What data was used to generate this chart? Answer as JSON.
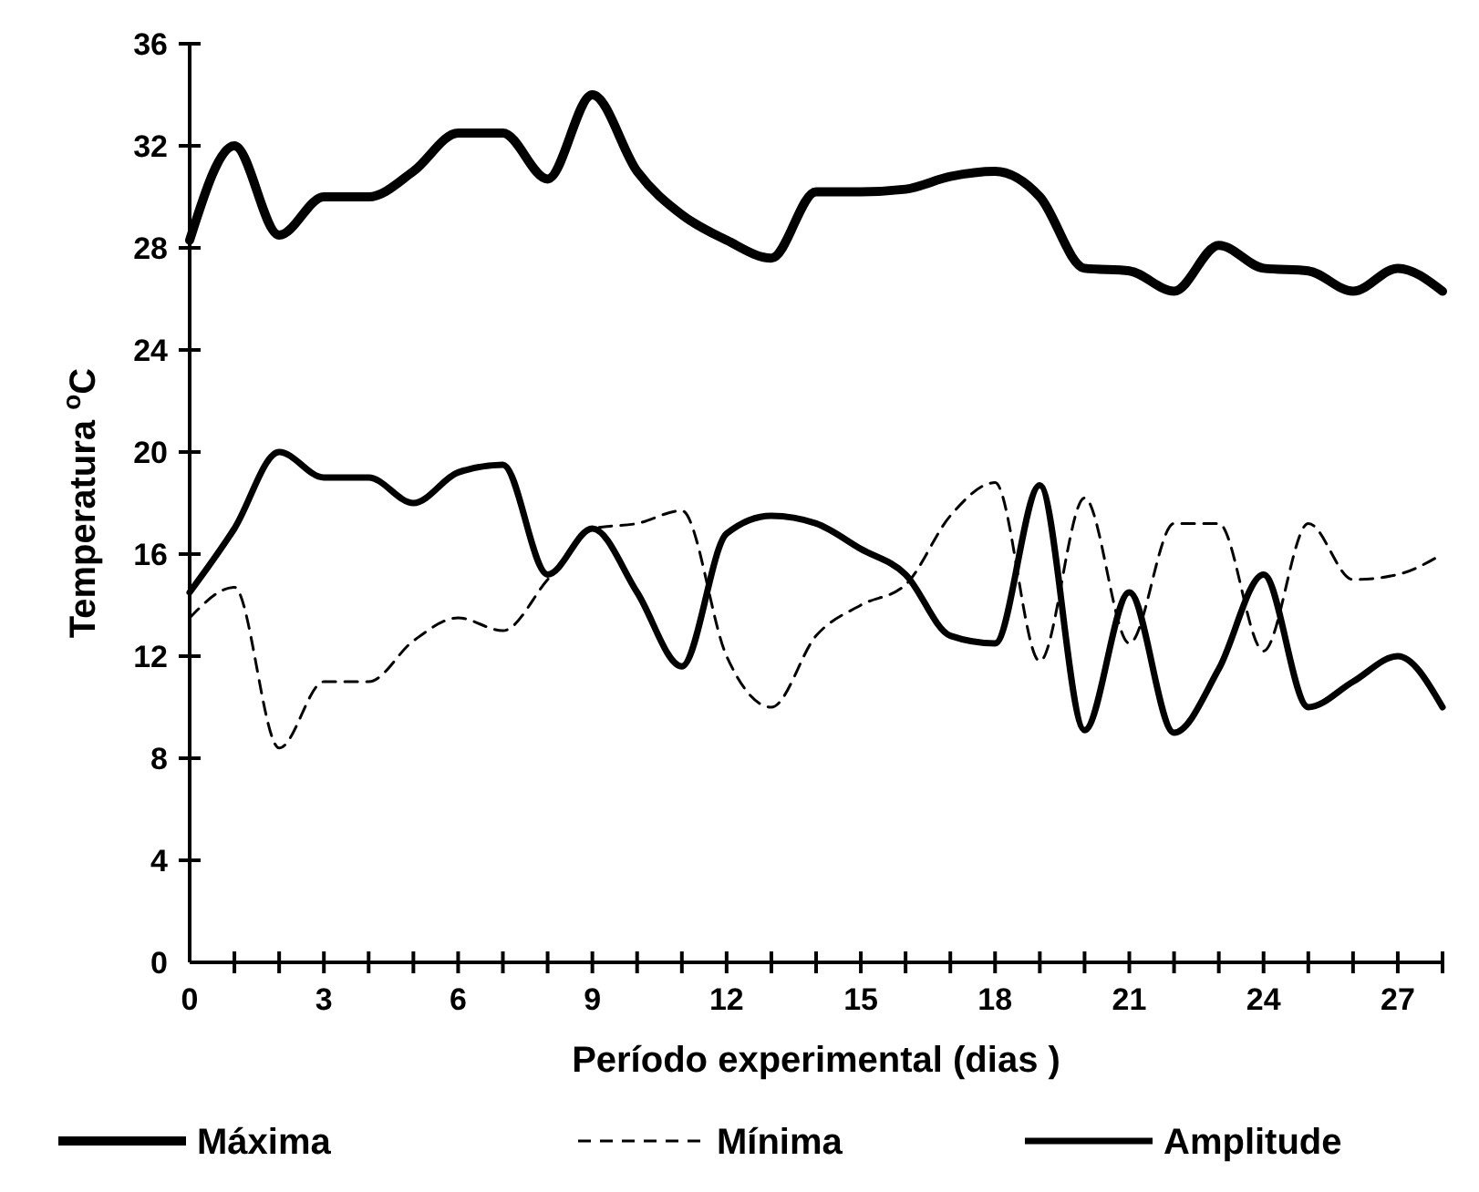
{
  "chart_data": {
    "type": "line",
    "xlabel": "Período experimental (dias )",
    "ylabel": "Temperatura $^{o}$C",
    "xlim": [
      0,
      28
    ],
    "ylim": [
      0,
      36
    ],
    "xticks": [
      0,
      {
        "value": 1,
        "label": null
      },
      {
        "value": 2,
        "label": null
      },
      3,
      {
        "value": 4,
        "label": null
      },
      {
        "value": 5,
        "label": null
      },
      6,
      {
        "value": 7,
        "label": null
      },
      {
        "value": 8,
        "label": null
      },
      9,
      {
        "value": 10,
        "label": null
      },
      {
        "value": 11,
        "label": null
      },
      12,
      {
        "value": 13,
        "label": null
      },
      {
        "value": 14,
        "label": null
      },
      15,
      {
        "value": 16,
        "label": null
      },
      {
        "value": 17,
        "label": null
      },
      18,
      {
        "value": 19,
        "label": null
      },
      {
        "value": 20,
        "label": null
      },
      21,
      {
        "value": 22,
        "label": null
      },
      {
        "value": 23,
        "label": null
      },
      24,
      {
        "value": 25,
        "label": null
      },
      {
        "value": 26,
        "label": null
      },
      27,
      {
        "value": 28,
        "label": null
      }
    ],
    "yticks": [
      0,
      4,
      8,
      12,
      16,
      20,
      24,
      28,
      32,
      36
    ],
    "grid": false,
    "legend": "bottom",
    "marker": "none",
    "x": [
      0,
      1,
      2,
      3,
      4,
      5,
      6,
      7,
      8,
      9,
      10,
      11,
      12,
      13,
      14,
      15,
      16,
      17,
      18,
      19,
      20,
      21,
      22,
      23,
      24,
      25,
      26,
      27,
      28
    ],
    "series": [
      {
        "name": "Máxima",
        "color": "#000000",
        "line_style": "solid",
        "values": [
          28.3,
          32,
          28.5,
          30,
          30,
          31,
          32.5,
          32.5,
          30.7,
          34,
          31,
          29.3,
          28.3,
          27.6,
          30.2,
          30.2,
          30.3,
          30.8,
          31,
          30,
          27.2,
          27.1,
          26.3,
          28.1,
          27.2,
          27.1,
          26.3,
          27.2,
          26.3
        ]
      },
      {
        "name": "Mínima",
        "color": "#000000",
        "line_style": "dashed",
        "values": [
          13.5,
          14.7,
          8.4,
          11,
          11,
          12.6,
          13.5,
          13,
          15,
          17,
          17.2,
          17.7,
          12,
          10,
          12.8,
          14,
          14.8,
          17.5,
          18.8,
          11.8,
          18.2,
          12.5,
          17.2,
          17.2,
          12.2,
          17.2,
          15,
          15.2,
          16
        ]
      },
      {
        "name": "Amplitude",
        "color": "#000000",
        "line_style": "solid",
        "values": [
          14.5,
          17,
          20,
          19,
          19,
          18,
          19.2,
          19.5,
          15.2,
          17,
          14.5,
          11.6,
          16.8,
          17.5,
          17.2,
          16.2,
          15.2,
          12.8,
          12.5,
          18.7,
          9.1,
          14.5,
          9,
          11.5,
          15.2,
          10,
          11,
          12,
          10
        ]
      }
    ]
  }
}
